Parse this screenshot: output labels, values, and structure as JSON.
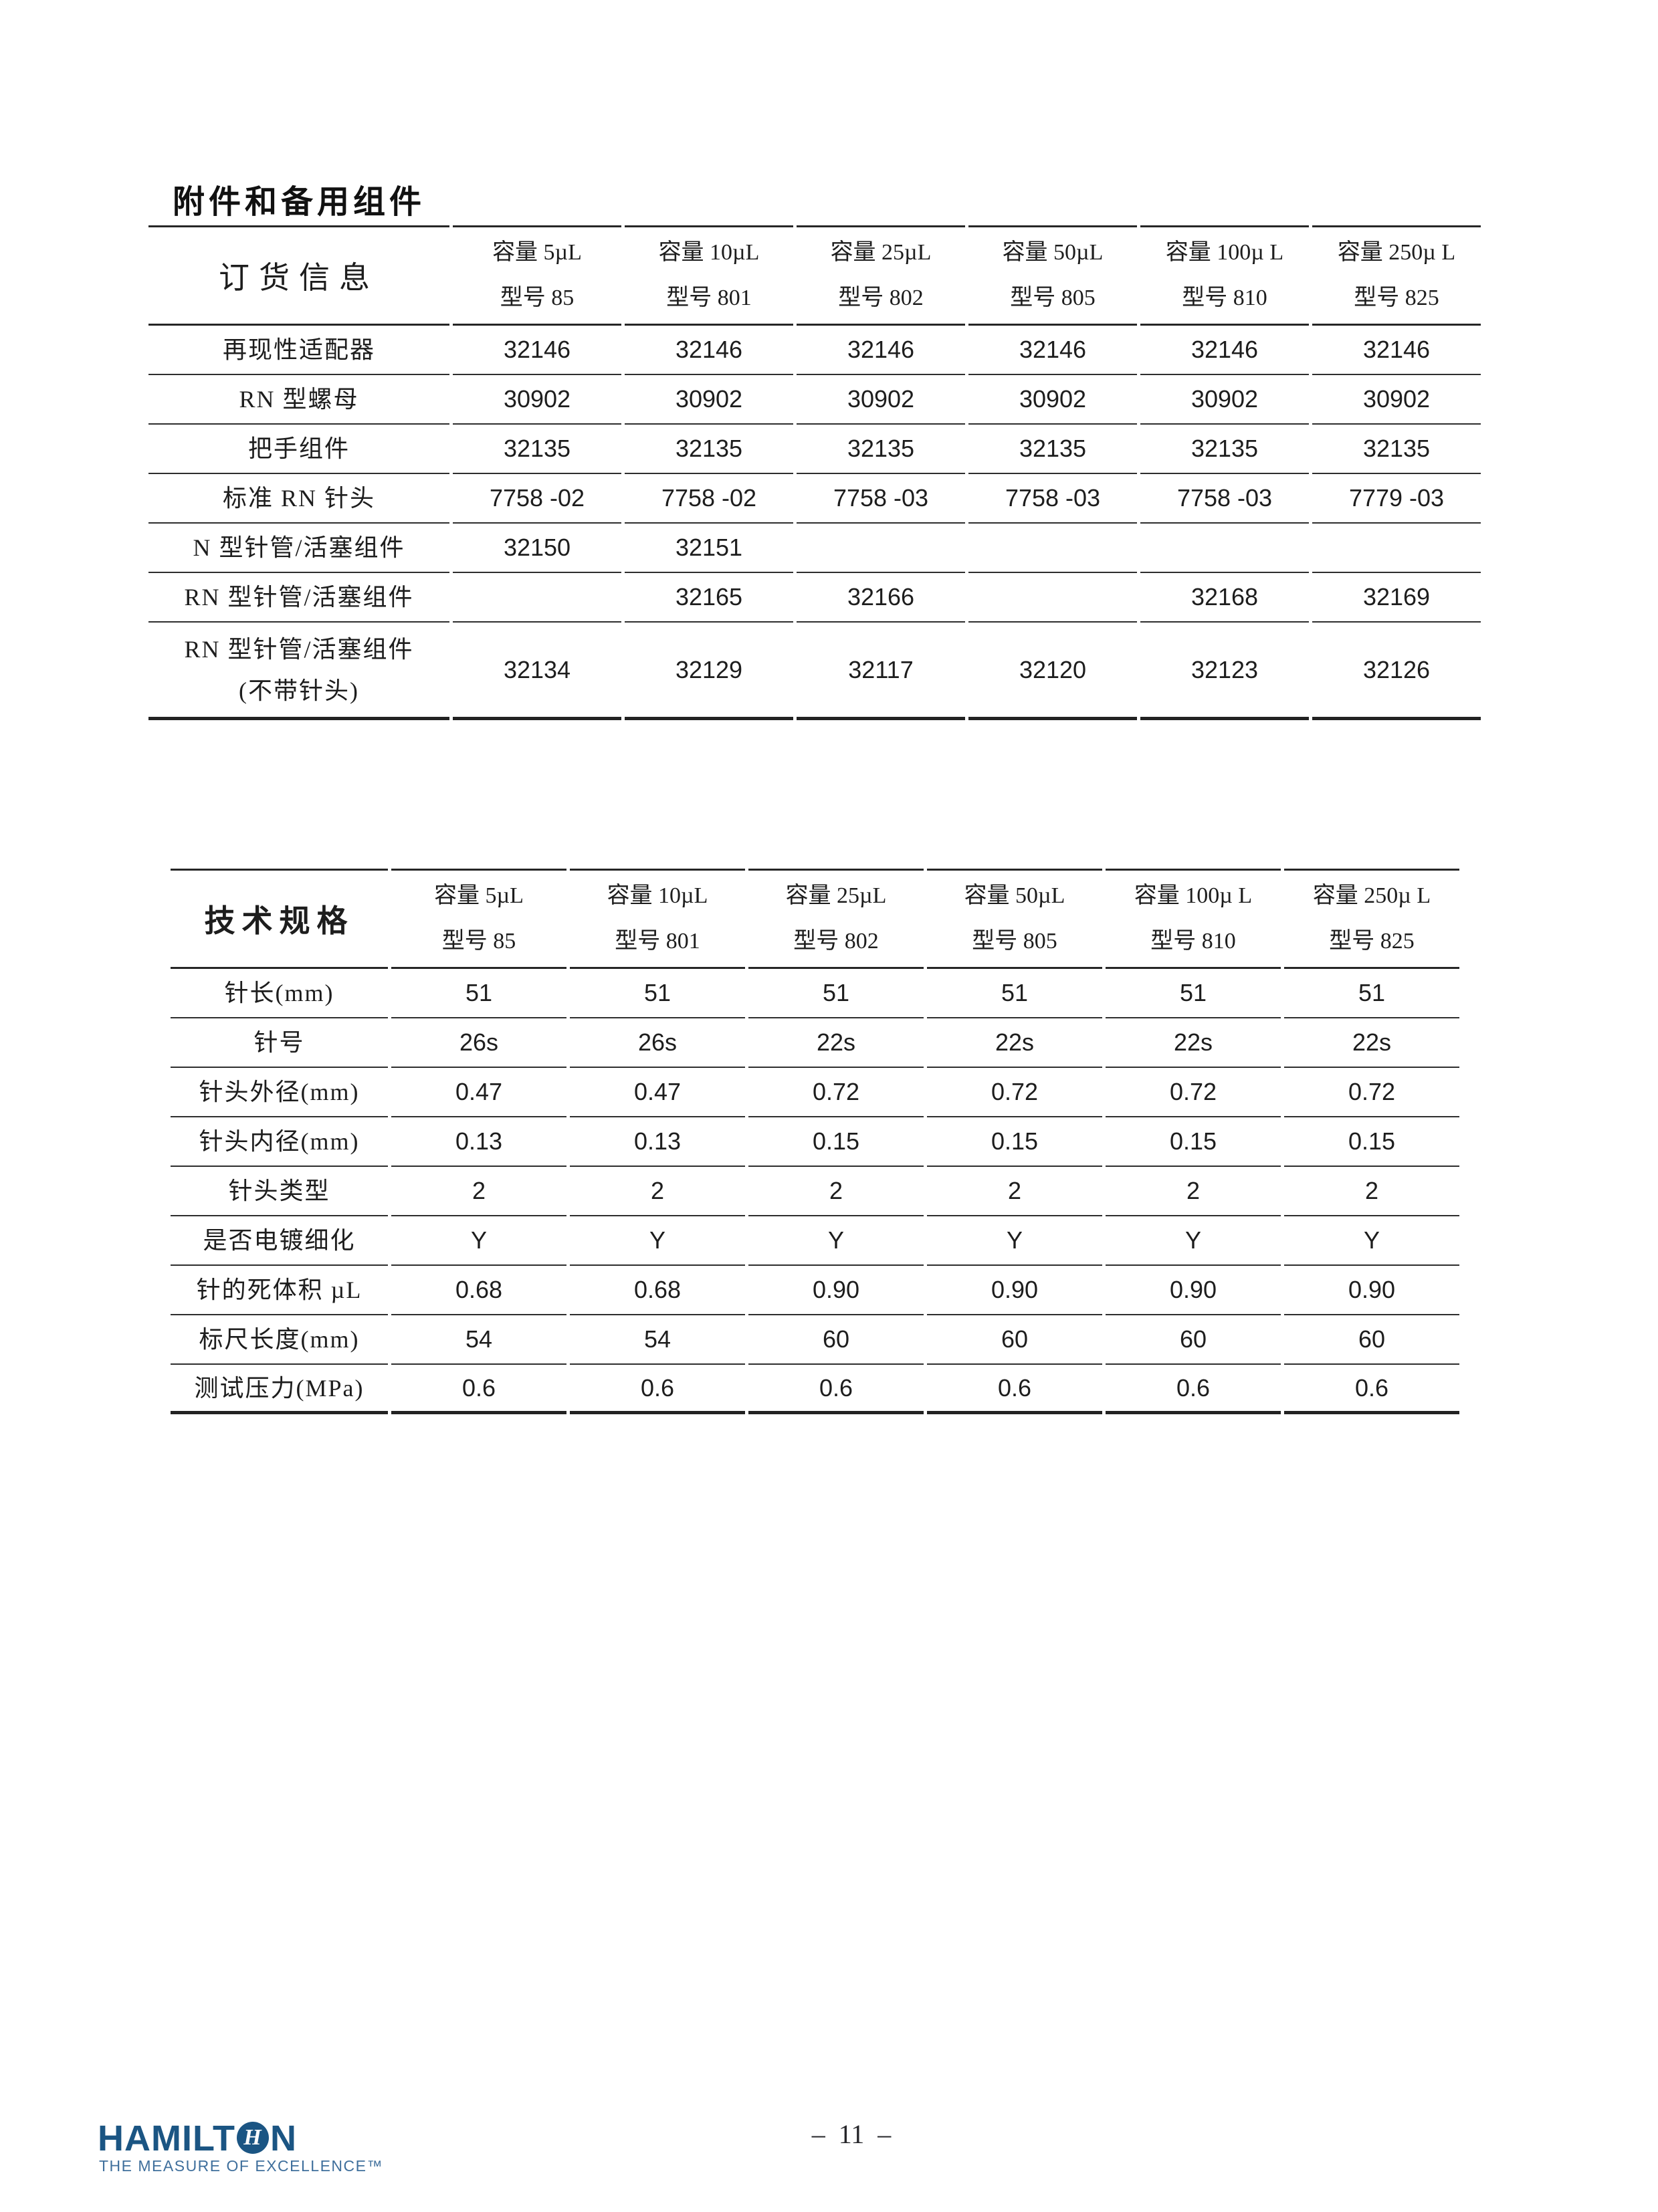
{
  "page": {
    "background": "#ffffff",
    "number_label": "–  11  –"
  },
  "accessories": {
    "title": "附件和备用组件",
    "corner_label": "订货信息",
    "columns": [
      {
        "capacity": "容量 5µL",
        "model": "型号 85"
      },
      {
        "capacity": "容量 10µL",
        "model": "型号 801"
      },
      {
        "capacity": "容量 25µL",
        "model": "型号 802"
      },
      {
        "capacity": "容量 50µL",
        "model": "型号 805"
      },
      {
        "capacity": "容量 100µ L",
        "model": "型号 810"
      },
      {
        "capacity": "容量 250µ L",
        "model": "型号 825"
      }
    ],
    "rows": [
      {
        "label": "再现性适配器",
        "values": [
          "32146",
          "32146",
          "32146",
          "32146",
          "32146",
          "32146"
        ]
      },
      {
        "label": "RN 型螺母",
        "values": [
          "30902",
          "30902",
          "30902",
          "30902",
          "30902",
          "30902"
        ]
      },
      {
        "label": "把手组件",
        "values": [
          "32135",
          "32135",
          "32135",
          "32135",
          "32135",
          "32135"
        ]
      },
      {
        "label": "标准 RN 针头",
        "values": [
          "7758 -02",
          "7758 -02",
          "7758 -03",
          "7758 -03",
          "7758 -03",
          "7779 -03"
        ]
      },
      {
        "label": "N 型针管/活塞组件",
        "values": [
          "32150",
          "32151",
          "",
          "",
          "",
          ""
        ]
      },
      {
        "label": "RN 型针管/活塞组件",
        "values": [
          "",
          "32165",
          "32166",
          "",
          "32168",
          "32169"
        ]
      },
      {
        "label": "RN 型针管/活塞组件",
        "sublabel": "(不带针头)",
        "values": [
          "32134",
          "32129",
          "32117",
          "32120",
          "32123",
          "32126"
        ]
      }
    ]
  },
  "specs": {
    "corner_label": "技术规格",
    "columns": [
      {
        "capacity": "容量 5µL",
        "model": "型号 85"
      },
      {
        "capacity": "容量 10µL",
        "model": "型号 801"
      },
      {
        "capacity": "容量 25µL",
        "model": "型号 802"
      },
      {
        "capacity": "容量 50µL",
        "model": "型号 805"
      },
      {
        "capacity": "容量 100µ L",
        "model": "型号 810"
      },
      {
        "capacity": "容量 250µ L",
        "model": "型号 825"
      }
    ],
    "rows": [
      {
        "label": "针长(mm)",
        "values": [
          "51",
          "51",
          "51",
          "51",
          "51",
          "51"
        ]
      },
      {
        "label": "针号",
        "values": [
          "26s",
          "26s",
          "22s",
          "22s",
          "22s",
          "22s"
        ]
      },
      {
        "label": "针头外径(mm)",
        "values": [
          "0.47",
          "0.47",
          "0.72",
          "0.72",
          "0.72",
          "0.72"
        ]
      },
      {
        "label": "针头内径(mm)",
        "values": [
          "0.13",
          "0.13",
          "0.15",
          "0.15",
          "0.15",
          "0.15"
        ]
      },
      {
        "label": "针头类型",
        "values": [
          "2",
          "2",
          "2",
          "2",
          "2",
          "2"
        ]
      },
      {
        "label": "是否电镀细化",
        "values": [
          "Y",
          "Y",
          "Y",
          "Y",
          "Y",
          "Y"
        ]
      },
      {
        "label": "针的死体积 µL",
        "values": [
          "0.68",
          "0.68",
          "0.90",
          "0.90",
          "0.90",
          "0.90"
        ]
      },
      {
        "label": "标尺长度(mm)",
        "values": [
          "54",
          "54",
          "60",
          "60",
          "60",
          "60"
        ]
      },
      {
        "label": "测试压力(MPa)",
        "values": [
          "0.6",
          "0.6",
          "0.6",
          "0.6",
          "0.6",
          "0.6"
        ]
      }
    ]
  },
  "footer": {
    "brand_prefix": "HAMILT",
    "brand_o_letter": "H",
    "brand_suffix": "N",
    "tagline": "THE MEASURE OF EXCELLENCE™",
    "brand_color": "#1b5583",
    "tagline_color": "#3f6f9c"
  }
}
